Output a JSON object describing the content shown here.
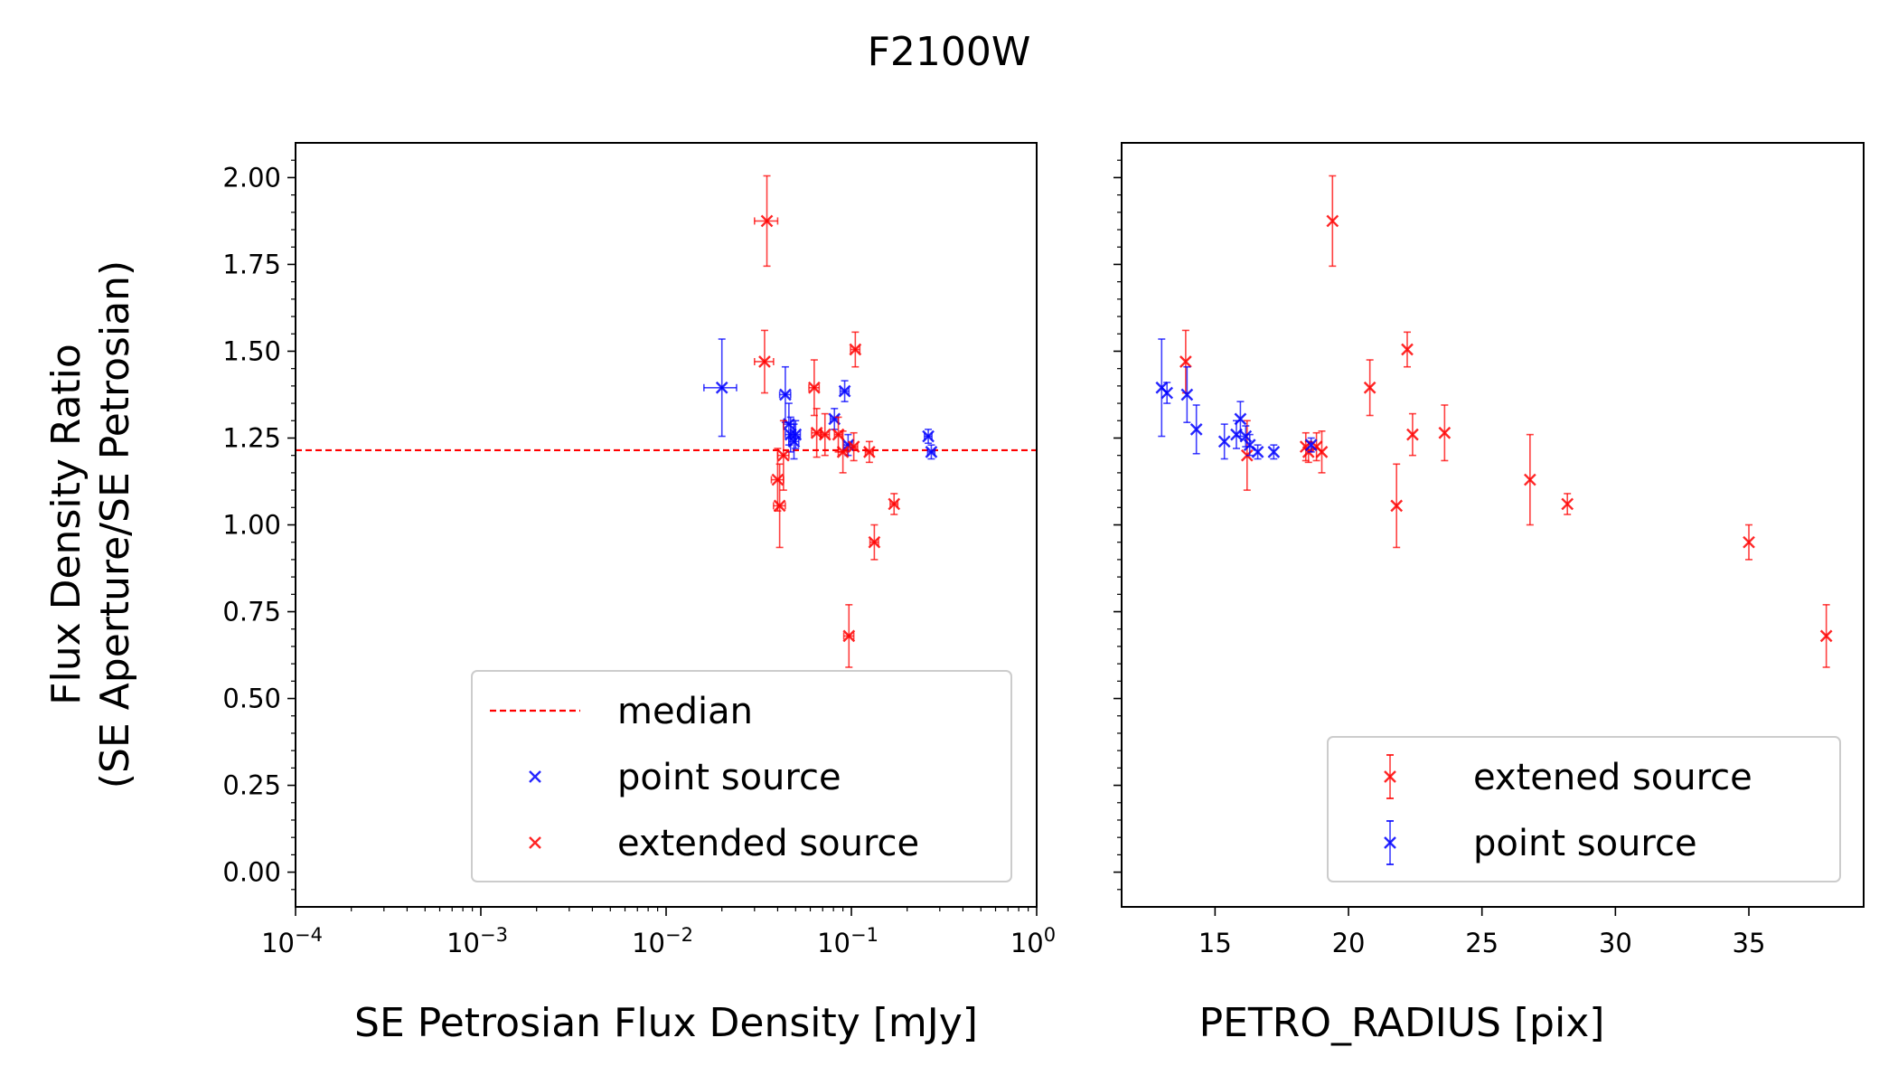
{
  "figure": {
    "title": "F2100W"
  },
  "shared_ylabel": [
    "Flux Density Ratio",
    "(SE Aperture/SE Petrosian)"
  ],
  "chart_data": [
    {
      "type": "scatter",
      "panel": "left",
      "xlabel": "SE Petrosian Flux Density [mJy]",
      "ylabel": "Flux Density Ratio (SE Aperture/SE Petrosian)",
      "xscale": "log",
      "xlim": [
        0.0001,
        1
      ],
      "ylim": [
        -0.1,
        2.1
      ],
      "xticks": [
        {
          "value": 0.0001,
          "base": "10",
          "exp": "−4"
        },
        {
          "value": 0.001,
          "base": "10",
          "exp": "−3"
        },
        {
          "value": 0.01,
          "base": "10",
          "exp": "−2"
        },
        {
          "value": 0.1,
          "base": "10",
          "exp": "−1"
        },
        {
          "value": 1,
          "base": "10",
          "exp": "0"
        }
      ],
      "yticks": [
        0.0,
        0.25,
        0.5,
        0.75,
        1.0,
        1.25,
        1.5,
        1.75,
        2.0
      ],
      "ytick_labels": [
        "0.00",
        "0.25",
        "0.50",
        "0.75",
        "1.00",
        "1.25",
        "1.50",
        "1.75",
        "2.00"
      ],
      "median": 1.215,
      "legend": {
        "position": "lower-right",
        "entries": [
          {
            "label": "median",
            "kind": "line",
            "color": "#ff0000"
          },
          {
            "label": "point source",
            "kind": "marker",
            "color": "#0000ff"
          },
          {
            "label": "extended source",
            "kind": "marker",
            "color": "#ff0000"
          }
        ]
      },
      "series": [
        {
          "name": "point source",
          "color": "#0000ff",
          "points": [
            {
              "x": 0.02,
              "y": 1.395,
              "yerr": 0.14,
              "xerr": 0.004
            },
            {
              "x": 0.044,
              "y": 1.375,
              "yerr": 0.08,
              "xerr": 0.003
            },
            {
              "x": 0.046,
              "y": 1.29,
              "yerr": 0.06,
              "xerr": 0.003
            },
            {
              "x": 0.047,
              "y": 1.26,
              "yerr": 0.05,
              "xerr": 0.003
            },
            {
              "x": 0.049,
              "y": 1.24,
              "yerr": 0.05,
              "xerr": 0.003
            },
            {
              "x": 0.05,
              "y": 1.26,
              "yerr": 0.04,
              "xerr": 0.003
            },
            {
              "x": 0.081,
              "y": 1.305,
              "yerr": 0.03,
              "xerr": 0.004
            },
            {
              "x": 0.092,
              "y": 1.385,
              "yerr": 0.03,
              "xerr": 0.005
            },
            {
              "x": 0.096,
              "y": 1.23,
              "yerr": 0.03,
              "xerr": 0.005
            },
            {
              "x": 0.26,
              "y": 1.255,
              "yerr": 0.02,
              "xerr": 0.012
            },
            {
              "x": 0.27,
              "y": 1.21,
              "yerr": 0.02,
              "xerr": 0.012
            }
          ]
        },
        {
          "name": "extended source",
          "color": "#ff0000",
          "points": [
            {
              "x": 0.035,
              "y": 1.875,
              "yerr": 0.13,
              "xerr": 0.005
            },
            {
              "x": 0.034,
              "y": 1.47,
              "yerr": 0.09,
              "xerr": 0.004
            },
            {
              "x": 0.04,
              "y": 1.13,
              "yerr": 0.09,
              "xerr": 0.003
            },
            {
              "x": 0.041,
              "y": 1.055,
              "yerr": 0.12,
              "xerr": 0.003
            },
            {
              "x": 0.043,
              "y": 1.2,
              "yerr": 0.1,
              "xerr": 0.003
            },
            {
              "x": 0.063,
              "y": 1.395,
              "yerr": 0.08,
              "xerr": 0.004
            },
            {
              "x": 0.065,
              "y": 1.265,
              "yerr": 0.07,
              "xerr": 0.004
            },
            {
              "x": 0.072,
              "y": 1.26,
              "yerr": 0.06,
              "xerr": 0.004
            },
            {
              "x": 0.085,
              "y": 1.26,
              "yerr": 0.05,
              "xerr": 0.004
            },
            {
              "x": 0.09,
              "y": 1.21,
              "yerr": 0.06,
              "xerr": 0.005
            },
            {
              "x": 0.097,
              "y": 0.68,
              "yerr": 0.09,
              "xerr": 0.006
            },
            {
              "x": 0.103,
              "y": 1.225,
              "yerr": 0.04,
              "xerr": 0.005
            },
            {
              "x": 0.105,
              "y": 1.505,
              "yerr": 0.05,
              "xerr": 0.006
            },
            {
              "x": 0.125,
              "y": 1.21,
              "yerr": 0.03,
              "xerr": 0.006
            },
            {
              "x": 0.133,
              "y": 0.95,
              "yerr": 0.05,
              "xerr": 0.007
            },
            {
              "x": 0.17,
              "y": 1.06,
              "yerr": 0.03,
              "xerr": 0.008
            }
          ]
        }
      ]
    },
    {
      "type": "scatter",
      "panel": "right",
      "xlabel": "PETRO_RADIUS [pix]",
      "xscale": "linear",
      "xlim": [
        11.5,
        39.3
      ],
      "ylim": [
        -0.1,
        2.1
      ],
      "xticks": [
        15,
        20,
        25,
        30,
        35
      ],
      "yticks": [
        0.0,
        0.25,
        0.5,
        0.75,
        1.0,
        1.25,
        1.5,
        1.75,
        2.0
      ],
      "legend": {
        "position": "lower-right",
        "entries": [
          {
            "label": "extened source",
            "kind": "errorbar",
            "color": "#ff0000"
          },
          {
            "label": "point source",
            "kind": "errorbar",
            "color": "#0000ff"
          }
        ]
      },
      "series": [
        {
          "name": "extened source",
          "color": "#ff0000",
          "points": [
            {
              "x": 13.9,
              "y": 1.47,
              "yerr": 0.09
            },
            {
              "x": 16.2,
              "y": 1.2,
              "yerr": 0.1
            },
            {
              "x": 18.4,
              "y": 1.225,
              "yerr": 0.04
            },
            {
              "x": 18.5,
              "y": 1.21,
              "yerr": 0.03
            },
            {
              "x": 18.8,
              "y": 1.225,
              "yerr": 0.04
            },
            {
              "x": 19.0,
              "y": 1.21,
              "yerr": 0.06
            },
            {
              "x": 19.4,
              "y": 1.875,
              "yerr": 0.13
            },
            {
              "x": 20.8,
              "y": 1.395,
              "yerr": 0.08
            },
            {
              "x": 21.8,
              "y": 1.055,
              "yerr": 0.12
            },
            {
              "x": 22.2,
              "y": 1.505,
              "yerr": 0.05
            },
            {
              "x": 22.4,
              "y": 1.26,
              "yerr": 0.06
            },
            {
              "x": 23.6,
              "y": 1.265,
              "yerr": 0.08
            },
            {
              "x": 26.8,
              "y": 1.13,
              "yerr": 0.13
            },
            {
              "x": 28.2,
              "y": 1.06,
              "yerr": 0.03
            },
            {
              "x": 35.0,
              "y": 0.95,
              "yerr": 0.05
            },
            {
              "x": 37.9,
              "y": 0.68,
              "yerr": 0.09
            }
          ]
        },
        {
          "name": "point source",
          "color": "#0000ff",
          "points": [
            {
              "x": 13.0,
              "y": 1.395,
              "yerr": 0.14
            },
            {
              "x": 13.2,
              "y": 1.38,
              "yerr": 0.03
            },
            {
              "x": 13.95,
              "y": 1.375,
              "yerr": 0.08
            },
            {
              "x": 14.3,
              "y": 1.275,
              "yerr": 0.07
            },
            {
              "x": 15.35,
              "y": 1.24,
              "yerr": 0.05
            },
            {
              "x": 15.8,
              "y": 1.26,
              "yerr": 0.04
            },
            {
              "x": 15.95,
              "y": 1.305,
              "yerr": 0.05
            },
            {
              "x": 16.15,
              "y": 1.255,
              "yerr": 0.03
            },
            {
              "x": 16.3,
              "y": 1.23,
              "yerr": 0.03
            },
            {
              "x": 16.6,
              "y": 1.21,
              "yerr": 0.02
            },
            {
              "x": 17.2,
              "y": 1.21,
              "yerr": 0.02
            },
            {
              "x": 18.6,
              "y": 1.23,
              "yerr": 0.02
            }
          ]
        }
      ]
    }
  ]
}
